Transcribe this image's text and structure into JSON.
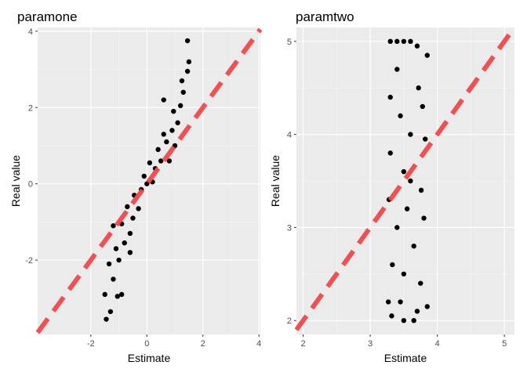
{
  "chart_data": [
    {
      "type": "scatter",
      "title": "paramone",
      "xlabel": "Estimate",
      "ylabel": "Real value",
      "xlim": [
        -3.9,
        4.05
      ],
      "ylim": [
        -3.95,
        4.1
      ],
      "xticks": [
        -2,
        0,
        2,
        4
      ],
      "yticks": [
        -2,
        0,
        2,
        4
      ],
      "xtick_labels": [
        "-2",
        "0",
        "2",
        "4"
      ],
      "ytick_labels": [
        "-2",
        "0",
        "2",
        "4"
      ],
      "reference_line": {
        "type": "identity",
        "style": "dashed",
        "color": "#f0484a"
      },
      "grid": true,
      "point_color": "#000000",
      "points": [
        [
          -1.45,
          -3.55
        ],
        [
          -1.3,
          -3.35
        ],
        [
          -1.05,
          -2.95
        ],
        [
          -0.9,
          -2.9
        ],
        [
          -1.5,
          -2.9
        ],
        [
          -1.2,
          -2.5
        ],
        [
          -1.35,
          -2.1
        ],
        [
          -1.0,
          -2.0
        ],
        [
          -0.8,
          -1.55
        ],
        [
          -1.1,
          -1.7
        ],
        [
          -0.6,
          -1.3
        ],
        [
          -0.9,
          -1.05
        ],
        [
          -0.5,
          -0.9
        ],
        [
          -0.7,
          -0.6
        ],
        [
          -0.3,
          -0.65
        ],
        [
          -0.45,
          -0.3
        ],
        [
          -0.2,
          -0.15
        ],
        [
          0.0,
          0.0
        ],
        [
          -0.1,
          0.2
        ],
        [
          0.2,
          0.05
        ],
        [
          0.3,
          0.4
        ],
        [
          0.1,
          0.55
        ],
        [
          0.5,
          0.6
        ],
        [
          0.4,
          0.9
        ],
        [
          0.7,
          1.1
        ],
        [
          0.6,
          1.3
        ],
        [
          0.9,
          1.4
        ],
        [
          1.1,
          1.6
        ],
        [
          0.95,
          1.9
        ],
        [
          1.2,
          2.05
        ],
        [
          1.3,
          2.4
        ],
        [
          1.25,
          2.7
        ],
        [
          1.45,
          2.95
        ],
        [
          1.5,
          3.2
        ],
        [
          1.45,
          3.75
        ],
        [
          0.8,
          0.6
        ],
        [
          1.0,
          1.0
        ],
        [
          -0.6,
          -1.8
        ],
        [
          -1.2,
          -1.1
        ],
        [
          0.6,
          2.2
        ]
      ]
    },
    {
      "type": "scatter",
      "title": "paramtwo",
      "xlabel": "Estimate",
      "ylabel": "Real value",
      "xlim": [
        1.9,
        5.15
      ],
      "ylim": [
        1.85,
        5.15
      ],
      "xticks": [
        2,
        3,
        4,
        5
      ],
      "yticks": [
        2,
        3,
        4,
        5
      ],
      "xtick_labels": [
        "2",
        "3",
        "4",
        "5"
      ],
      "ytick_labels": [
        "2",
        "3",
        "4",
        "5"
      ],
      "reference_line": {
        "type": "identity",
        "style": "dashed",
        "color": "#f0484a"
      },
      "grid": true,
      "point_color": "#000000",
      "points": [
        [
          3.3,
          5.0
        ],
        [
          3.4,
          5.0
        ],
        [
          3.5,
          5.0
        ],
        [
          3.6,
          5.0
        ],
        [
          3.7,
          4.95
        ],
        [
          3.85,
          4.85
        ],
        [
          3.72,
          4.5
        ],
        [
          3.3,
          4.4
        ],
        [
          3.78,
          4.3
        ],
        [
          3.45,
          4.2
        ],
        [
          3.6,
          4.0
        ],
        [
          3.82,
          3.95
        ],
        [
          3.3,
          3.8
        ],
        [
          3.5,
          3.6
        ],
        [
          3.76,
          3.4
        ],
        [
          3.28,
          3.3
        ],
        [
          3.55,
          3.2
        ],
        [
          3.8,
          3.1
        ],
        [
          3.4,
          3.0
        ],
        [
          3.65,
          2.8
        ],
        [
          3.33,
          2.6
        ],
        [
          3.5,
          2.5
        ],
        [
          3.75,
          2.4
        ],
        [
          3.45,
          2.2
        ],
        [
          3.32,
          2.05
        ],
        [
          3.5,
          2.0
        ],
        [
          3.65,
          2.0
        ],
        [
          3.7,
          2.1
        ],
        [
          3.85,
          2.15
        ],
        [
          3.27,
          2.2
        ],
        [
          3.6,
          3.5
        ],
        [
          3.4,
          4.7
        ]
      ]
    }
  ]
}
